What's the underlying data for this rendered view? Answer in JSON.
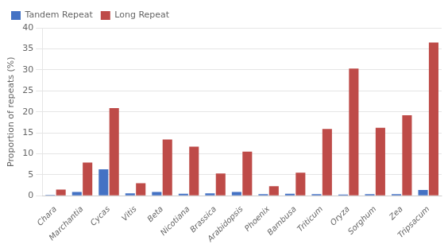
{
  "chart_data": {
    "type": "bar",
    "categories": [
      "Chara",
      "Marchantia",
      "Cycas",
      "Vitis",
      "Beta",
      "Nicotiana",
      "Brassica",
      "Arabidopsis",
      "Phoenix",
      "Bambusa",
      "Triticum",
      "Oryza",
      "Sorghum",
      "Zea",
      "Tripsacum"
    ],
    "series": [
      {
        "name": "Tandem Repeat",
        "color": "#4472C4",
        "values": [
          0.2,
          0.9,
          6.3,
          0.6,
          0.9,
          0.5,
          0.6,
          0.9,
          0.4,
          0.5,
          0.4,
          0.3,
          0.4,
          0.4,
          1.4
        ]
      },
      {
        "name": "Long Repeat",
        "color": "#BE4B48",
        "values": [
          1.5,
          7.9,
          20.9,
          3.0,
          13.4,
          11.7,
          5.3,
          10.5,
          2.3,
          5.5,
          15.9,
          30.3,
          16.2,
          19.2,
          36.5
        ]
      }
    ],
    "ylabel": "Proportion of repeats (%)",
    "ylim": [
      0,
      40
    ],
    "yticks": [
      0,
      5,
      10,
      15,
      20,
      25,
      30,
      35,
      40
    ],
    "grid": true,
    "legend": "upper left"
  }
}
